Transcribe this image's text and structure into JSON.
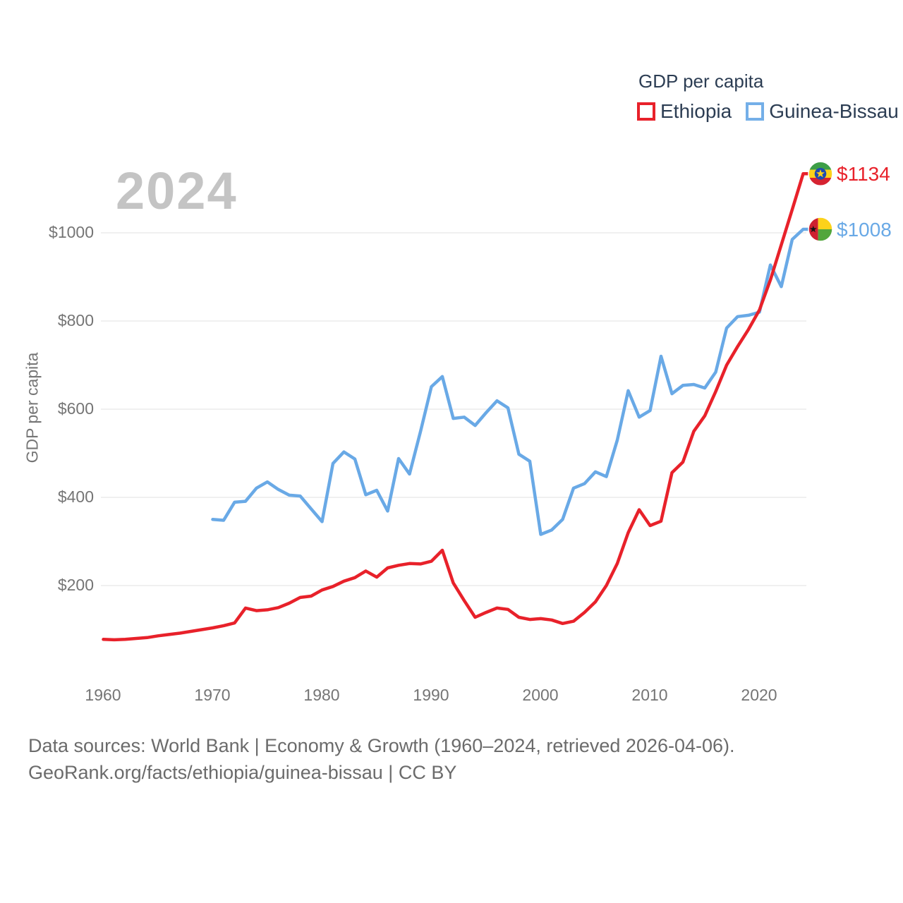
{
  "watermark": "2024",
  "header": {
    "legend_title": "GDP per capita",
    "legend": [
      {
        "label": "Ethiopia",
        "color": "#e8212a"
      },
      {
        "label": "Guinea-Bissau",
        "color": "#74afe8"
      }
    ]
  },
  "axes": {
    "y_title": "GDP per capita",
    "y_ticks": [
      "$1000",
      "$800",
      "$600",
      "$400",
      "$200"
    ],
    "x_ticks": [
      "1960",
      "1970",
      "1980",
      "1990",
      "2000",
      "2010",
      "2020"
    ]
  },
  "end_labels": {
    "ethiopia": {
      "text": "$1134",
      "color": "#e8212a"
    },
    "guinea_bissau": {
      "text": "$1008",
      "color": "#69a9e6"
    }
  },
  "footer": {
    "line1": "Data sources: World Bank | Economy & Growth (1960–2024, retrieved 2026-04-06).",
    "line2": "GeoRank.org/facts/ethiopia/guinea-bissau | CC BY"
  },
  "chart_data": {
    "type": "line",
    "title": "GDP per capita",
    "unit": "current US$",
    "year_label": "2024",
    "x_range": [
      1960,
      2024
    ],
    "ylim": [
      60,
      1160
    ],
    "y_grid_values": [
      200,
      400,
      600,
      800,
      1000
    ],
    "grid": "horizontal-only",
    "legend_position": "top-right",
    "series": [
      {
        "name": "Ethiopia",
        "color": "#e8212a",
        "start_year": 1960,
        "end_value": 1134,
        "end_value_label": "$1134",
        "values": [
          78,
          77,
          78,
          80,
          82,
          86,
          89,
          92,
          96,
          100,
          104,
          109,
          115,
          149,
          143,
          145,
          150,
          160,
          173,
          176,
          190,
          198,
          210,
          218,
          233,
          219,
          240,
          246,
          250,
          249,
          255,
          280,
          206,
          166,
          128,
          139,
          149,
          146,
          128,
          123,
          125,
          122,
          114,
          119,
          139,
          163,
          200,
          250,
          320,
          372,
          336,
          346,
          456,
          480,
          550,
          585,
          640,
          700,
          742,
          781,
          825,
          893,
          973,
          1053,
          1134
        ]
      },
      {
        "name": "Guinea-Bissau",
        "color": "#69a9e6",
        "start_year": 1970,
        "end_value": 1008,
        "end_value_label": "$1008",
        "values": [
          350,
          348,
          389,
          391,
          421,
          435,
          418,
          405,
          403,
          374,
          345,
          477,
          503,
          487,
          406,
          416,
          369,
          488,
          453,
          549,
          651,
          674,
          579,
          582,
          563,
          592,
          619,
          603,
          498,
          482,
          316,
          326,
          350,
          421,
          431,
          458,
          447,
          530,
          642,
          582,
          597,
          720,
          635,
          654,
          656,
          648,
          684,
          784,
          810,
          813,
          820,
          927,
          878,
          985,
          1008
        ]
      }
    ]
  }
}
